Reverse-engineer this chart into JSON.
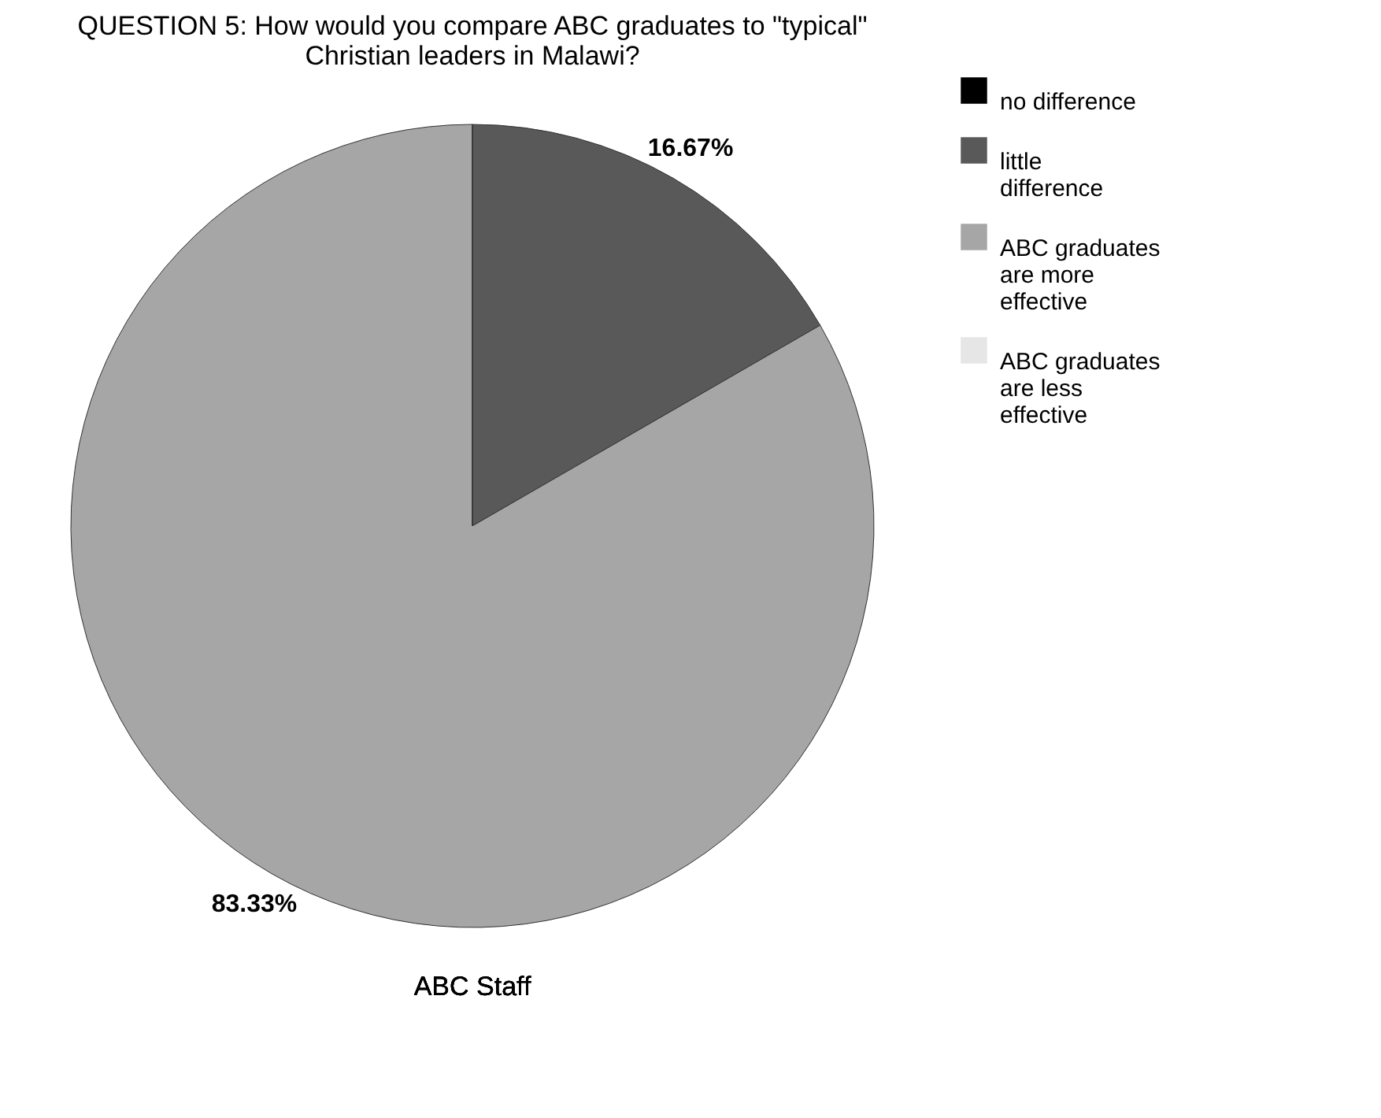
{
  "chart_data": {
    "type": "pie",
    "title": "QUESTION 5: How would you compare ABC graduates to \"typical\" Christian leaders in Malawi?",
    "xlabel": "ABC Staff",
    "categories": [
      "no difference",
      "little difference",
      "ABC graduates are more effective",
      "ABC graduates are less effective"
    ],
    "values": [
      0,
      16.67,
      83.33,
      0
    ],
    "colors": [
      "#000000",
      "#595959",
      "#a6a6a6",
      "#e6e6e6"
    ],
    "value_labels": [
      null,
      "16.67%",
      "83.33%",
      null
    ],
    "legend": "right"
  }
}
